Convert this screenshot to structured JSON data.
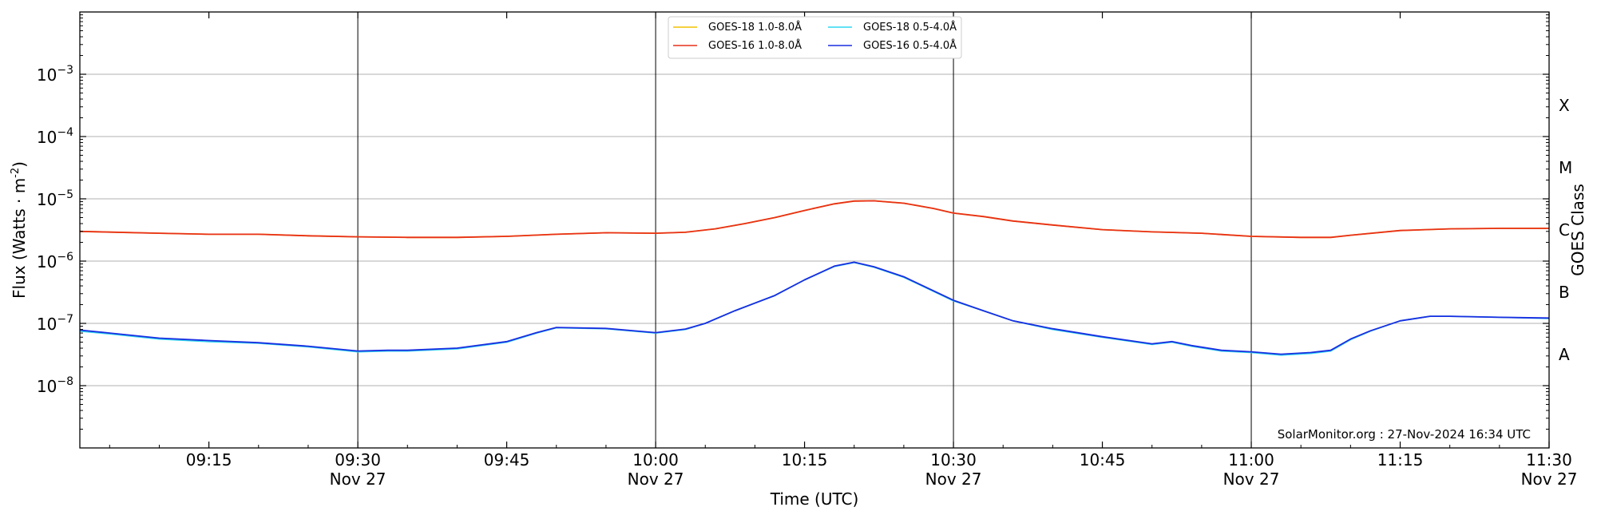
{
  "chart_data": {
    "type": "line",
    "xlabel": "Time (UTC)",
    "ylabel": "Flux (Watts · m",
    "ylabel_exp": "-2",
    "ylabel_close": ")",
    "y2label": "GOES Class",
    "yscale": "log",
    "xlim": [
      "09:02",
      "11:30"
    ],
    "ylim": [
      1e-09,
      0.01
    ],
    "grid": "horizontal",
    "legend_position": "top-center",
    "annotation": "SolarMonitor.org : 27-Nov-2024 16:34 UTC",
    "x_ticks": [
      {
        "time": "09:15",
        "line1": "09:15",
        "line2": ""
      },
      {
        "time": "09:30",
        "line1": "09:30",
        "line2": "Nov 27"
      },
      {
        "time": "09:45",
        "line1": "09:45",
        "line2": ""
      },
      {
        "time": "10:00",
        "line1": "10:00",
        "line2": "Nov 27"
      },
      {
        "time": "10:15",
        "line1": "10:15",
        "line2": ""
      },
      {
        "time": "10:30",
        "line1": "10:30",
        "line2": "Nov 27"
      },
      {
        "time": "10:45",
        "line1": "10:45",
        "line2": ""
      },
      {
        "time": "11:00",
        "line1": "11:00",
        "line2": "Nov 27"
      },
      {
        "time": "11:15",
        "line1": "11:15",
        "line2": ""
      },
      {
        "time": "11:30",
        "line1": "11:30",
        "line2": "Nov 27"
      }
    ],
    "vertical_lines": [
      "09:30",
      "10:00",
      "10:30",
      "11:00"
    ],
    "y_ticks": [
      {
        "value": 1e-08,
        "base": "10",
        "exp": "−8"
      },
      {
        "value": 1e-07,
        "base": "10",
        "exp": "−7"
      },
      {
        "value": 1e-06,
        "base": "10",
        "exp": "−6"
      },
      {
        "value": 1e-05,
        "base": "10",
        "exp": "−5"
      },
      {
        "value": 0.0001,
        "base": "10",
        "exp": "−4"
      },
      {
        "value": 0.001,
        "base": "10",
        "exp": "−3"
      }
    ],
    "class_labels": [
      {
        "label": "A",
        "value": 3.16e-08
      },
      {
        "label": "B",
        "value": 3.16e-07
      },
      {
        "label": "C",
        "value": 3.16e-06
      },
      {
        "label": "M",
        "value": 3.16e-05
      },
      {
        "label": "X",
        "value": 0.000316
      }
    ],
    "series": [
      {
        "name": "GOES-18 1.0-8.0Å",
        "color": "#f2c200",
        "points": [
          [
            "09:02",
            3e-06
          ],
          [
            "09:10",
            2.8e-06
          ],
          [
            "09:15",
            2.7e-06
          ],
          [
            "09:20",
            2.7e-06
          ],
          [
            "09:25",
            2.55e-06
          ],
          [
            "09:30",
            2.45e-06
          ],
          [
            "09:35",
            2.4e-06
          ],
          [
            "09:40",
            2.4e-06
          ],
          [
            "09:45",
            2.5e-06
          ],
          [
            "09:50",
            2.7e-06
          ],
          [
            "09:55",
            2.85e-06
          ],
          [
            "10:00",
            2.8e-06
          ],
          [
            "10:03",
            2.9e-06
          ],
          [
            "10:06",
            3.3e-06
          ],
          [
            "10:09",
            4e-06
          ],
          [
            "10:12",
            5e-06
          ],
          [
            "10:15",
            6.5e-06
          ],
          [
            "10:18",
            8.3e-06
          ],
          [
            "10:20",
            9.2e-06
          ],
          [
            "10:22",
            9.3e-06
          ],
          [
            "10:25",
            8.5e-06
          ],
          [
            "10:28",
            7e-06
          ],
          [
            "10:30",
            5.9e-06
          ],
          [
            "10:33",
            5.2e-06
          ],
          [
            "10:36",
            4.4e-06
          ],
          [
            "10:40",
            3.8e-06
          ],
          [
            "10:45",
            3.2e-06
          ],
          [
            "10:50",
            2.95e-06
          ],
          [
            "10:55",
            2.8e-06
          ],
          [
            "11:00",
            2.5e-06
          ],
          [
            "11:05",
            2.4e-06
          ],
          [
            "11:08",
            2.4e-06
          ],
          [
            "11:10",
            2.6e-06
          ],
          [
            "11:15",
            3.1e-06
          ],
          [
            "11:20",
            3.3e-06
          ],
          [
            "11:25",
            3.35e-06
          ],
          [
            "11:30",
            3.35e-06
          ]
        ]
      },
      {
        "name": "GOES-16 1.0-8.0Å",
        "color": "#e8301a",
        "points": [
          [
            "09:02",
            3e-06
          ],
          [
            "09:10",
            2.8e-06
          ],
          [
            "09:15",
            2.7e-06
          ],
          [
            "09:20",
            2.7e-06
          ],
          [
            "09:25",
            2.55e-06
          ],
          [
            "09:30",
            2.45e-06
          ],
          [
            "09:35",
            2.4e-06
          ],
          [
            "09:40",
            2.4e-06
          ],
          [
            "09:45",
            2.5e-06
          ],
          [
            "09:50",
            2.7e-06
          ],
          [
            "09:55",
            2.85e-06
          ],
          [
            "10:00",
            2.8e-06
          ],
          [
            "10:03",
            2.9e-06
          ],
          [
            "10:06",
            3.3e-06
          ],
          [
            "10:09",
            4e-06
          ],
          [
            "10:12",
            5e-06
          ],
          [
            "10:15",
            6.5e-06
          ],
          [
            "10:18",
            8.3e-06
          ],
          [
            "10:20",
            9.2e-06
          ],
          [
            "10:22",
            9.3e-06
          ],
          [
            "10:25",
            8.5e-06
          ],
          [
            "10:28",
            7e-06
          ],
          [
            "10:30",
            5.9e-06
          ],
          [
            "10:33",
            5.2e-06
          ],
          [
            "10:36",
            4.4e-06
          ],
          [
            "10:40",
            3.8e-06
          ],
          [
            "10:45",
            3.2e-06
          ],
          [
            "10:50",
            2.95e-06
          ],
          [
            "10:55",
            2.8e-06
          ],
          [
            "11:00",
            2.5e-06
          ],
          [
            "11:05",
            2.4e-06
          ],
          [
            "11:08",
            2.4e-06
          ],
          [
            "11:10",
            2.6e-06
          ],
          [
            "11:15",
            3.1e-06
          ],
          [
            "11:20",
            3.3e-06
          ],
          [
            "11:25",
            3.35e-06
          ],
          [
            "11:30",
            3.35e-06
          ]
        ]
      },
      {
        "name": "GOES-18 0.5-4.0Å",
        "color": "#2fd8f0",
        "points": [
          [
            "09:02",
            7.5e-08
          ],
          [
            "09:05",
            6.8e-08
          ],
          [
            "09:10",
            5.6e-08
          ],
          [
            "09:15",
            5.1e-08
          ],
          [
            "09:20",
            4.8e-08
          ],
          [
            "09:25",
            4.2e-08
          ],
          [
            "09:30",
            3.5e-08
          ],
          [
            "09:33",
            3.6e-08
          ],
          [
            "09:35",
            3.6e-08
          ],
          [
            "09:40",
            3.9e-08
          ],
          [
            "09:45",
            5e-08
          ],
          [
            "09:48",
            7e-08
          ],
          [
            "09:50",
            8.5e-08
          ],
          [
            "09:55",
            8.2e-08
          ],
          [
            "10:00",
            7e-08
          ],
          [
            "10:03",
            8e-08
          ],
          [
            "10:05",
            1e-07
          ],
          [
            "10:08",
            1.6e-07
          ],
          [
            "10:12",
            2.8e-07
          ],
          [
            "10:15",
            5e-07
          ],
          [
            "10:18",
            8.2e-07
          ],
          [
            "10:20",
            9.5e-07
          ],
          [
            "10:22",
            8e-07
          ],
          [
            "10:25",
            5.5e-07
          ],
          [
            "10:30",
            2.3e-07
          ],
          [
            "10:33",
            1.6e-07
          ],
          [
            "10:36",
            1.1e-07
          ],
          [
            "10:40",
            8e-08
          ],
          [
            "10:45",
            6e-08
          ],
          [
            "10:50",
            4.6e-08
          ],
          [
            "10:52",
            5e-08
          ],
          [
            "10:54",
            4.3e-08
          ],
          [
            "10:57",
            3.6e-08
          ],
          [
            "11:00",
            3.4e-08
          ],
          [
            "11:03",
            3.1e-08
          ],
          [
            "11:06",
            3.3e-08
          ],
          [
            "11:08",
            3.6e-08
          ],
          [
            "11:10",
            5.5e-08
          ],
          [
            "11:12",
            7.5e-08
          ],
          [
            "11:15",
            1.1e-07
          ],
          [
            "11:18",
            1.3e-07
          ],
          [
            "11:20",
            1.3e-07
          ],
          [
            "11:25",
            1.25e-07
          ],
          [
            "11:30",
            1.2e-07
          ]
        ]
      },
      {
        "name": "GOES-16 0.5-4.0Å",
        "color": "#1a2ee0",
        "points": [
          [
            "09:02",
            7.8e-08
          ],
          [
            "09:05",
            7e-08
          ],
          [
            "09:10",
            5.8e-08
          ],
          [
            "09:15",
            5.3e-08
          ],
          [
            "09:20",
            4.9e-08
          ],
          [
            "09:25",
            4.3e-08
          ],
          [
            "09:30",
            3.6e-08
          ],
          [
            "09:33",
            3.7e-08
          ],
          [
            "09:35",
            3.7e-08
          ],
          [
            "09:40",
            4e-08
          ],
          [
            "09:45",
            5.1e-08
          ],
          [
            "09:48",
            7.1e-08
          ],
          [
            "09:50",
            8.6e-08
          ],
          [
            "09:55",
            8.3e-08
          ],
          [
            "10:00",
            7.1e-08
          ],
          [
            "10:03",
            8.1e-08
          ],
          [
            "10:05",
            1e-07
          ],
          [
            "10:08",
            1.6e-07
          ],
          [
            "10:12",
            2.8e-07
          ],
          [
            "10:15",
            5e-07
          ],
          [
            "10:18",
            8.3e-07
          ],
          [
            "10:20",
            9.6e-07
          ],
          [
            "10:22",
            8.1e-07
          ],
          [
            "10:25",
            5.6e-07
          ],
          [
            "10:30",
            2.35e-07
          ],
          [
            "10:33",
            1.6e-07
          ],
          [
            "10:36",
            1.1e-07
          ],
          [
            "10:40",
            8.2e-08
          ],
          [
            "10:45",
            6.1e-08
          ],
          [
            "10:50",
            4.7e-08
          ],
          [
            "10:52",
            5.1e-08
          ],
          [
            "10:54",
            4.4e-08
          ],
          [
            "10:57",
            3.7e-08
          ],
          [
            "11:00",
            3.5e-08
          ],
          [
            "11:03",
            3.2e-08
          ],
          [
            "11:06",
            3.4e-08
          ],
          [
            "11:08",
            3.7e-08
          ],
          [
            "11:10",
            5.6e-08
          ],
          [
            "11:12",
            7.6e-08
          ],
          [
            "11:15",
            1.1e-07
          ],
          [
            "11:18",
            1.3e-07
          ],
          [
            "11:20",
            1.3e-07
          ],
          [
            "11:25",
            1.25e-07
          ],
          [
            "11:30",
            1.22e-07
          ]
        ]
      }
    ]
  }
}
